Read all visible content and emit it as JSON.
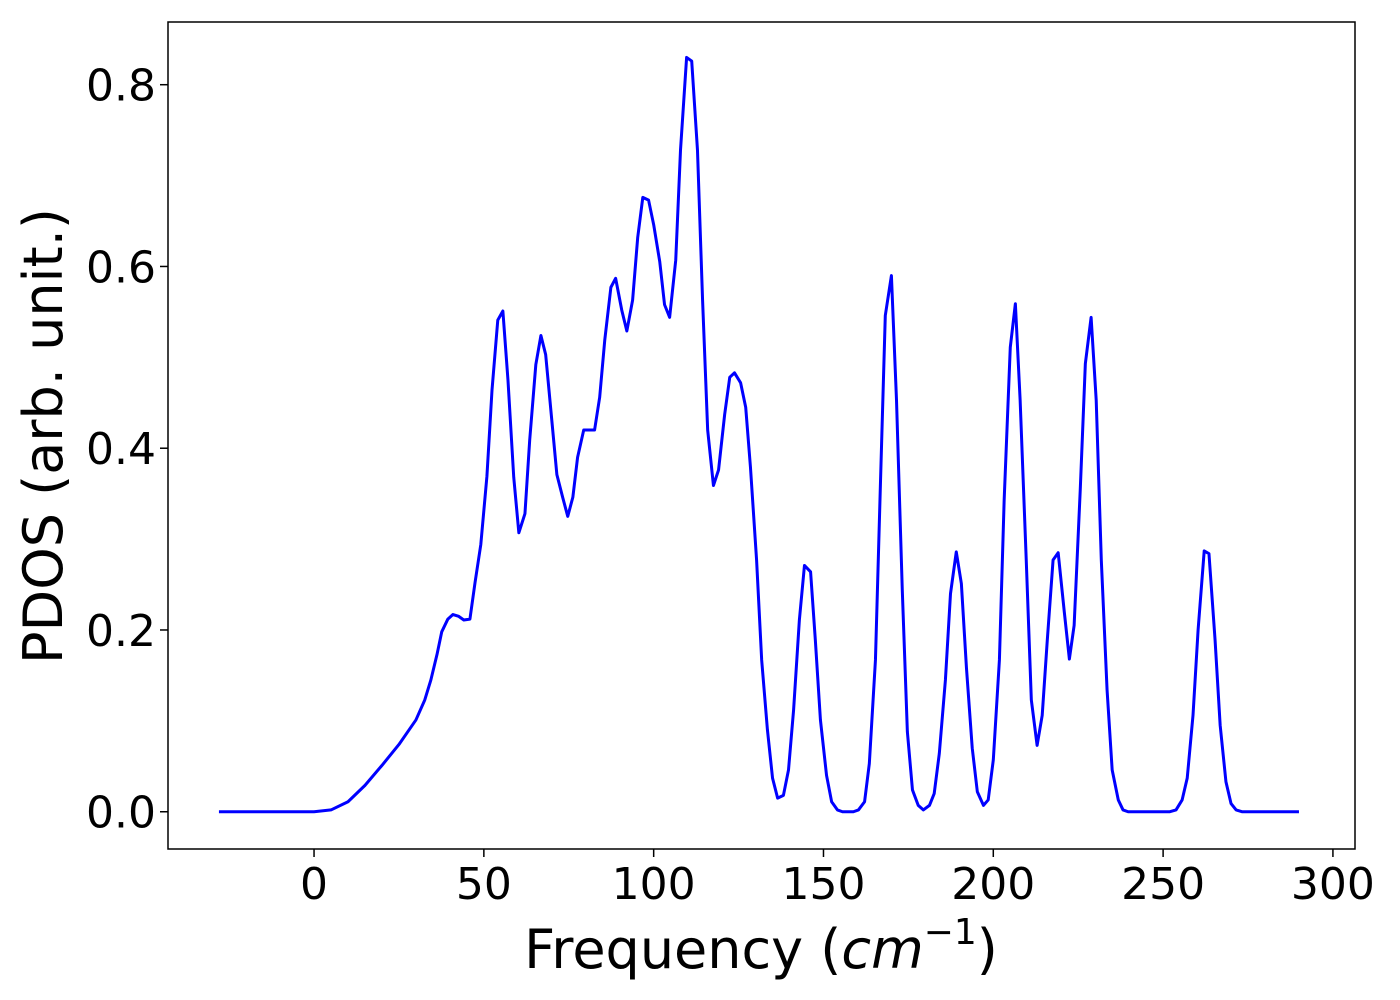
{
  "chart_data": {
    "type": "line",
    "xlabel": {
      "prefix": "Frequency (",
      "unit": "cm",
      "exponent": "−1",
      "suffix": ")"
    },
    "ylabel": "PDOS (arb. unit.)",
    "xlim": [
      -43,
      306.5
    ],
    "ylim": [
      -0.041,
      0.869
    ],
    "xticks": [
      0,
      50,
      100,
      150,
      200,
      250,
      300
    ],
    "yticks": [
      {
        "value": 0,
        "label": "0.0"
      },
      0.2,
      0.4,
      0.6,
      0.8
    ],
    "x": [
      -28,
      -10,
      0,
      5,
      10,
      15,
      20,
      25,
      30,
      32.6,
      34.4,
      36.2,
      37.6,
      39.4,
      40.9,
      42.6,
      44.1,
      45.9,
      47.4,
      49.1,
      50.9,
      52.4,
      54.1,
      55.6,
      57.1,
      58.8,
      60.3,
      62.1,
      63.5,
      65.3,
      66.8,
      68.2,
      70,
      71.5,
      73.2,
      74.7,
      76.2,
      77.6,
      79.4,
      80.9,
      82.6,
      84.1,
      85.6,
      87.4,
      88.8,
      90.6,
      92.1,
      93.8,
      95.3,
      96.8,
      98.5,
      100,
      101.8,
      103.2,
      104.7,
      106.5,
      107.9,
      109.7,
      111.2,
      112.9,
      114.4,
      115.9,
      117.6,
      119.1,
      120.9,
      122.4,
      123.8,
      125.6,
      127.1,
      128.5,
      130.3,
      131.8,
      133.5,
      135,
      136.5,
      138.2,
      139.7,
      141.2,
      142.9,
      144.4,
      146.2,
      147.6,
      149.1,
      150.9,
      152.4,
      154.1,
      155.6,
      158.8,
      160.3,
      162.1,
      163.5,
      165.3,
      166.8,
      168.2,
      170,
      171.5,
      173.2,
      174.7,
      176.2,
      177.9,
      179.4,
      181.2,
      182.6,
      184.1,
      185.9,
      187.4,
      189.1,
      190.6,
      192.1,
      193.8,
      195.3,
      197.1,
      198.5,
      200,
      201.8,
      203.2,
      205,
      206.5,
      207.9,
      209.7,
      211.2,
      212.9,
      214.4,
      215.9,
      217.6,
      219.1,
      220.9,
      222.4,
      223.8,
      225.6,
      227.1,
      228.8,
      230.3,
      231.8,
      233.5,
      235,
      236.8,
      238.2,
      239.7,
      252,
      253.8,
      255.6,
      257.1,
      258.8,
      260.3,
      262.1,
      263.5,
      265.3,
      266.8,
      268.5,
      270,
      271.5,
      273.2,
      290
    ],
    "series": [
      {
        "color": "#0000ff",
        "values": [
          0,
          0,
          0,
          0.002,
          0.011,
          0.029,
          0.051,
          0.074,
          0.101,
          0.123,
          0.145,
          0.173,
          0.198,
          0.212,
          0.217,
          0.215,
          0.211,
          0.212,
          0.252,
          0.294,
          0.369,
          0.464,
          0.541,
          0.551,
          0.475,
          0.368,
          0.307,
          0.328,
          0.409,
          0.492,
          0.524,
          0.503,
          0.431,
          0.371,
          0.346,
          0.325,
          0.346,
          0.39,
          0.42,
          0.42,
          0.42,
          0.456,
          0.519,
          0.577,
          0.587,
          0.552,
          0.529,
          0.563,
          0.632,
          0.676,
          0.673,
          0.646,
          0.605,
          0.558,
          0.544,
          0.607,
          0.728,
          0.83,
          0.826,
          0.728,
          0.563,
          0.42,
          0.359,
          0.376,
          0.437,
          0.478,
          0.483,
          0.472,
          0.445,
          0.379,
          0.277,
          0.167,
          0.09,
          0.037,
          0.015,
          0.018,
          0.046,
          0.112,
          0.211,
          0.271,
          0.264,
          0.189,
          0.101,
          0.04,
          0.011,
          0.002,
          0,
          0,
          0.002,
          0.011,
          0.053,
          0.167,
          0.365,
          0.546,
          0.59,
          0.453,
          0.244,
          0.088,
          0.024,
          0.007,
          0.002,
          0.007,
          0.02,
          0.064,
          0.145,
          0.24,
          0.286,
          0.251,
          0.158,
          0.07,
          0.022,
          0.007,
          0.013,
          0.057,
          0.167,
          0.343,
          0.511,
          0.559,
          0.453,
          0.277,
          0.123,
          0.073,
          0.106,
          0.189,
          0.277,
          0.285,
          0.22,
          0.168,
          0.205,
          0.354,
          0.493,
          0.544,
          0.453,
          0.277,
          0.134,
          0.046,
          0.013,
          0.002,
          0,
          0,
          0.002,
          0.013,
          0.037,
          0.106,
          0.2,
          0.287,
          0.284,
          0.189,
          0.095,
          0.033,
          0.009,
          0.002,
          0,
          0
        ]
      }
    ]
  }
}
